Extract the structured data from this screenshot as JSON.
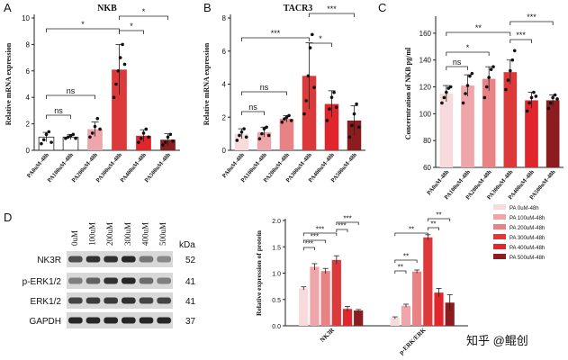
{
  "watermark": "知乎 @鲲创",
  "colors": {
    "c0": "#f7dadb",
    "c1": "#efa6aa",
    "c2": "#e88285",
    "c3": "#dc3a3a",
    "c4": "#e0262c",
    "c5": "#8c1c1f",
    "axis": "#333333"
  },
  "chart_data": [
    {
      "panel": "A",
      "type": "bar",
      "title": "NKB",
      "ylabel": "Relative mRNA expression",
      "ylim": [
        0,
        10
      ],
      "yticks": [
        "0",
        "2",
        "4",
        "6",
        "8",
        "10"
      ],
      "categories": [
        "PA0uM-48h",
        "PA100uM-48h",
        "PA200uM-48h",
        "PA300uM-48h",
        "PA400uM-48h",
        "PA500uM-48h"
      ],
      "values": [
        1.0,
        1.0,
        1.6,
        6.1,
        1.1,
        0.8
      ],
      "errors": [
        0.35,
        0.2,
        0.55,
        1.9,
        0.45,
        0.45
      ],
      "points": [
        [
          0.5,
          0.8,
          1.2,
          1.4,
          0.6
        ],
        [
          0.9,
          1.0,
          1.1,
          1.2,
          0.9
        ],
        [
          1.0,
          1.3,
          1.8,
          2.4,
          1.6
        ],
        [
          4.0,
          5.0,
          6.0,
          7.0,
          8.0,
          6.5
        ],
        [
          0.6,
          0.9,
          1.3,
          1.6,
          1.0
        ],
        [
          0.4,
          0.6,
          1.0,
          1.2,
          0.7
        ]
      ],
      "annotations": [
        {
          "from": 0,
          "to": 1,
          "label": "ns"
        },
        {
          "from": 0,
          "to": 2,
          "label": "ns"
        },
        {
          "from": 0,
          "to": 3,
          "label": "*"
        },
        {
          "from": 3,
          "to": 4,
          "label": "*"
        },
        {
          "from": 3,
          "to": 5,
          "label": "*"
        }
      ],
      "colors": [
        "#ffffff",
        "#ffffff",
        "#efa6aa",
        "#dc3a3a",
        "#e0262c",
        "#8c1c1f"
      ]
    },
    {
      "panel": "B",
      "type": "bar",
      "title": "TACR3",
      "ylabel": "Relative mRNA expression",
      "ylim": [
        0,
        8
      ],
      "yticks": [
        "0",
        "2",
        "4",
        "6",
        "8"
      ],
      "categories": [
        "PA0uM-48h",
        "PA100uM-48h",
        "PA200uM-48h",
        "PA300uM-48h",
        "PA400uM-48h",
        "PA500uM-48h"
      ],
      "values": [
        1.0,
        1.1,
        1.9,
        4.5,
        2.8,
        1.8
      ],
      "errors": [
        0.3,
        0.3,
        0.2,
        2.0,
        0.8,
        0.9
      ],
      "points": [
        [
          0.6,
          0.9,
          1.1,
          1.3,
          0.8
        ],
        [
          0.7,
          1.0,
          1.3,
          1.4,
          0.9
        ],
        [
          1.7,
          1.9,
          2.0,
          2.1,
          1.8
        ],
        [
          2.2,
          3.0,
          4.5,
          6.2,
          7.0,
          3.8
        ],
        [
          1.8,
          2.5,
          3.2,
          3.5,
          2.6
        ],
        [
          0.8,
          1.5,
          2.2,
          2.8,
          1.4
        ]
      ],
      "annotations": [
        {
          "from": 0,
          "to": 1,
          "label": "ns"
        },
        {
          "from": 0,
          "to": 2,
          "label": "ns"
        },
        {
          "from": 0,
          "to": 3,
          "label": "***"
        },
        {
          "from": 3,
          "to": 4,
          "label": "*"
        },
        {
          "from": 3,
          "to": 5,
          "label": "***"
        }
      ],
      "colors": [
        "#f7dadb",
        "#efa6aa",
        "#e88285",
        "#dc3a3a",
        "#e0262c",
        "#8c1c1f"
      ]
    },
    {
      "panel": "C",
      "type": "bar",
      "title": "",
      "ylabel": "Concerntration of NKB pg/ml",
      "ylim": [
        60,
        170
      ],
      "yticks": [
        "60",
        "80",
        "100",
        "120",
        "140",
        "160"
      ],
      "categories": [
        "PA0uM-48h",
        "PA100uM-48h",
        "PA200uM-48h",
        "PA300uM-48h",
        "PA400uM-48h",
        "PA500uM-48h"
      ],
      "values": [
        115,
        121,
        126,
        131,
        110,
        110
      ],
      "errors": [
        6,
        8,
        9,
        9,
        6,
        4
      ],
      "points": [
        [
          108,
          112,
          116,
          119,
          120
        ],
        [
          108,
          115,
          121,
          128,
          130
        ],
        [
          112,
          120,
          127,
          133,
          135
        ],
        [
          118,
          125,
          132,
          140,
          147
        ],
        [
          102,
          108,
          112,
          116,
          113
        ],
        [
          104,
          108,
          112,
          114,
          111
        ]
      ],
      "annotations": [
        {
          "from": 0,
          "to": 1,
          "label": "ns"
        },
        {
          "from": 0,
          "to": 2,
          "label": "*"
        },
        {
          "from": 0,
          "to": 3,
          "label": "**"
        },
        {
          "from": 3,
          "to": 4,
          "label": "***"
        },
        {
          "from": 3,
          "to": 5,
          "label": "***"
        }
      ],
      "colors": [
        "#f7dadb",
        "#efa6aa",
        "#e88285",
        "#dc3a3a",
        "#e0262c",
        "#8c1c1f"
      ]
    },
    {
      "panel": "D",
      "type": "bar",
      "title": "",
      "ylabel": "Relative expression of protein",
      "ylim": [
        0,
        2.0
      ],
      "yticks": [
        "0.0",
        "0.5",
        "1.0",
        "1.5",
        "2.0"
      ],
      "groups": [
        "NK3R",
        "p-ERK/ERK"
      ],
      "series": [
        {
          "name": "PA 0uM-48h",
          "values": [
            0.71,
            0.15
          ],
          "errors": [
            0.03,
            0.02
          ]
        },
        {
          "name": "PA 100uM-48h",
          "values": [
            1.12,
            0.38
          ],
          "errors": [
            0.06,
            0.03
          ]
        },
        {
          "name": "PA 200uM-48h",
          "values": [
            1.04,
            1.03
          ],
          "errors": [
            0.05,
            0.03
          ]
        },
        {
          "name": "PA 300uM-48h",
          "values": [
            1.25,
            1.68
          ],
          "errors": [
            0.08,
            0.05
          ]
        },
        {
          "name": "PA 400uM-48h",
          "values": [
            0.32,
            0.63
          ],
          "errors": [
            0.05,
            0.08
          ]
        },
        {
          "name": "PA 500uM-48h",
          "values": [
            0.29,
            0.44
          ],
          "errors": [
            0.02,
            0.15
          ]
        }
      ],
      "annotations": [
        {
          "group": 0,
          "from": 0,
          "to": 1,
          "label": "***"
        },
        {
          "group": 0,
          "from": 0,
          "to": 2,
          "label": "***"
        },
        {
          "group": 0,
          "from": 0,
          "to": 3,
          "label": "***"
        },
        {
          "group": 0,
          "from": 3,
          "to": 4,
          "label": "***"
        },
        {
          "group": 0,
          "from": 3,
          "to": 5,
          "label": "***"
        },
        {
          "group": 1,
          "from": 0,
          "to": 1,
          "label": "**"
        },
        {
          "group": 1,
          "from": 0,
          "to": 2,
          "label": "**"
        },
        {
          "group": 1,
          "from": 0,
          "to": 3,
          "label": "**"
        },
        {
          "group": 1,
          "from": 3,
          "to": 4,
          "label": "**"
        },
        {
          "group": 1,
          "from": 3,
          "to": 5,
          "label": "**"
        }
      ],
      "legend": "top-right",
      "colors": [
        "#f7dadb",
        "#efa6aa",
        "#e88285",
        "#dc3a3a",
        "#e0262c",
        "#8c1c1f"
      ]
    }
  ],
  "blot": {
    "lanes": [
      "0uM",
      "100uM",
      "200uM",
      "300uM",
      "400uM",
      "500uM"
    ],
    "kda_label": "kDa",
    "rows": [
      {
        "name": "NK3R",
        "kda": "52"
      },
      {
        "name": "p-ERK1/2",
        "kda": "41"
      },
      {
        "name": "ERK1/2",
        "kda": "41"
      },
      {
        "name": "GAPDH",
        "kda": "37"
      }
    ]
  }
}
